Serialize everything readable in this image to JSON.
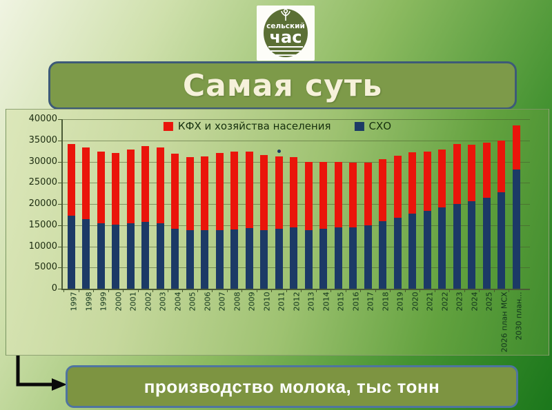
{
  "logo": {
    "name": "Сельский час",
    "word1": "сельский",
    "word2": "час"
  },
  "title": {
    "text": "Самая суть"
  },
  "caption": {
    "text": "производство молока, тыс тонн"
  },
  "chart_data": {
    "type": "bar",
    "stacked": true,
    "title": "",
    "xlabel": "",
    "ylabel": "",
    "ylim": [
      0,
      40000
    ],
    "yticks": [
      0,
      5000,
      10000,
      15000,
      20000,
      25000,
      30000,
      35000,
      40000
    ],
    "grid": true,
    "legend_position": "top-center",
    "legend_order": [
      "КФХ и хозяйства населения",
      "СХО"
    ],
    "categories": [
      "1997",
      "1998",
      "1999",
      "2000",
      "2001",
      "2002",
      "2003",
      "2004",
      "2005",
      "2006",
      "2007",
      "2008",
      "2009",
      "2010",
      "2011",
      "2012",
      "2013",
      "2014",
      "2015",
      "2016",
      "2017",
      "2018",
      "2019",
      "2020",
      "2021",
      "2022",
      "2023",
      "2024",
      "2025",
      "2026 план МСХ",
      "2030 план..."
    ],
    "series": [
      {
        "name": "СХО",
        "color": "#1c3a66",
        "values": [
          17300,
          16500,
          15500,
          15100,
          15400,
          15800,
          15400,
          14200,
          13900,
          13900,
          13900,
          14000,
          14300,
          13900,
          14100,
          14400,
          13800,
          14100,
          14400,
          14500,
          15000,
          15900,
          16700,
          17700,
          18400,
          19200,
          20000,
          20600,
          21500,
          22700,
          28200
        ]
      },
      {
        "name": "КФХ и хозяйства населения",
        "color": "#ea150b",
        "values": [
          16900,
          16800,
          16900,
          17000,
          17500,
          17900,
          18000,
          17700,
          17100,
          17400,
          18100,
          18300,
          18100,
          17700,
          17100,
          16700,
          16100,
          15800,
          15500,
          15300,
          14800,
          14700,
          14700,
          14500,
          13900,
          13700,
          14100,
          13400,
          12900,
          12300,
          10300
        ]
      }
    ],
    "annotation_dot": {
      "category": "2011",
      "value": 32500
    }
  }
}
